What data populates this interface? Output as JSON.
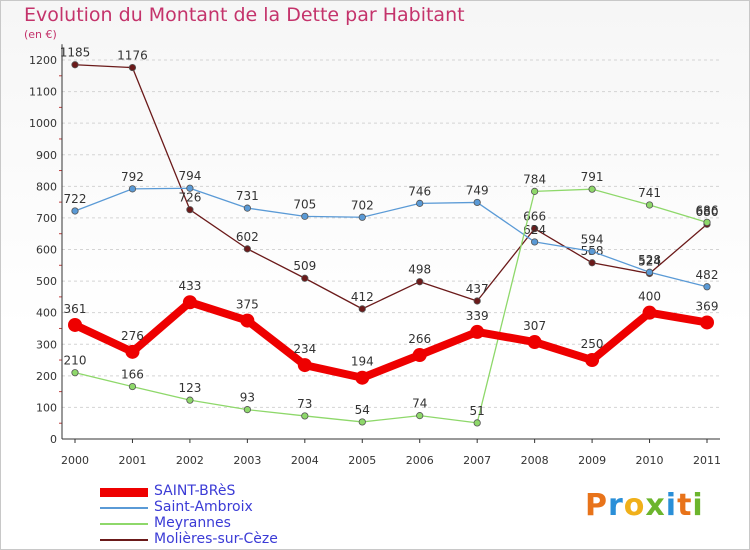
{
  "title": "Evolution du Montant de la Dette par Habitant",
  "unit": "(en €)",
  "logo": {
    "letters": [
      "P",
      "r",
      "o",
      "x",
      "i",
      "t",
      "i"
    ],
    "colors": [
      "#e8731a",
      "#2a8fd8",
      "#f0b01a",
      "#6cb52d",
      "#2a8fd8",
      "#e8731a",
      "#6cb52d"
    ]
  },
  "chart_data": {
    "type": "line",
    "title": "Evolution du Montant de la Dette par Habitant",
    "ylabel": "(en €)",
    "xlabel": "",
    "categories": [
      "2000",
      "2001",
      "2002",
      "2003",
      "2004",
      "2005",
      "2006",
      "2007",
      "2008",
      "2009",
      "2010",
      "2011"
    ],
    "ylim": [
      0,
      1250
    ],
    "yticks": [
      "0",
      "100",
      "200",
      "300",
      "400",
      "500",
      "600",
      "700",
      "800",
      "900",
      "1000",
      "1100",
      "1200"
    ],
    "grid": "horizontal dashed",
    "series": [
      {
        "name": "Molières-sur-Cèze",
        "color": "#6b1a1a",
        "values": [
          1185,
          1176,
          726,
          602,
          509,
          412,
          498,
          437,
          666,
          558,
          524,
          680
        ],
        "labels": [
          "1185",
          "1176",
          "726",
          "602",
          "509",
          "412",
          "498",
          "437",
          "666",
          "558",
          "524",
          "680"
        ]
      },
      {
        "name": "Saint-Ambroix",
        "color": "#5a9ad6",
        "values": [
          722,
          792,
          794,
          731,
          705,
          702,
          746,
          749,
          624,
          594,
          528,
          482
        ],
        "labels": [
          "722",
          "792",
          "794",
          "731",
          "705",
          "702",
          "746",
          "749",
          "624",
          "594",
          "528",
          "482"
        ]
      },
      {
        "name": "Meyrannes",
        "color": "#8ed86a",
        "values": [
          210,
          166,
          123,
          93,
          73,
          54,
          74,
          51,
          784,
          791,
          741,
          686
        ],
        "labels": [
          "210",
          "166",
          "123",
          "93",
          "73",
          "54",
          "74",
          "51",
          "784",
          "791",
          "741",
          "686"
        ]
      },
      {
        "name": "SAINT-BRèS",
        "color": "#ee0000",
        "values": [
          361,
          276,
          433,
          375,
          234,
          194,
          266,
          339,
          307,
          250,
          400,
          369
        ],
        "labels": [
          "361",
          "276",
          "433",
          "375",
          "234",
          "194",
          "266",
          "339",
          "307",
          "250",
          "400",
          "369"
        ]
      }
    ],
    "legend": [
      "SAINT-BRèS",
      "Saint-Ambroix",
      "Meyrannes",
      "Molières-sur-Cèze"
    ],
    "legend_position": "bottom-left"
  }
}
